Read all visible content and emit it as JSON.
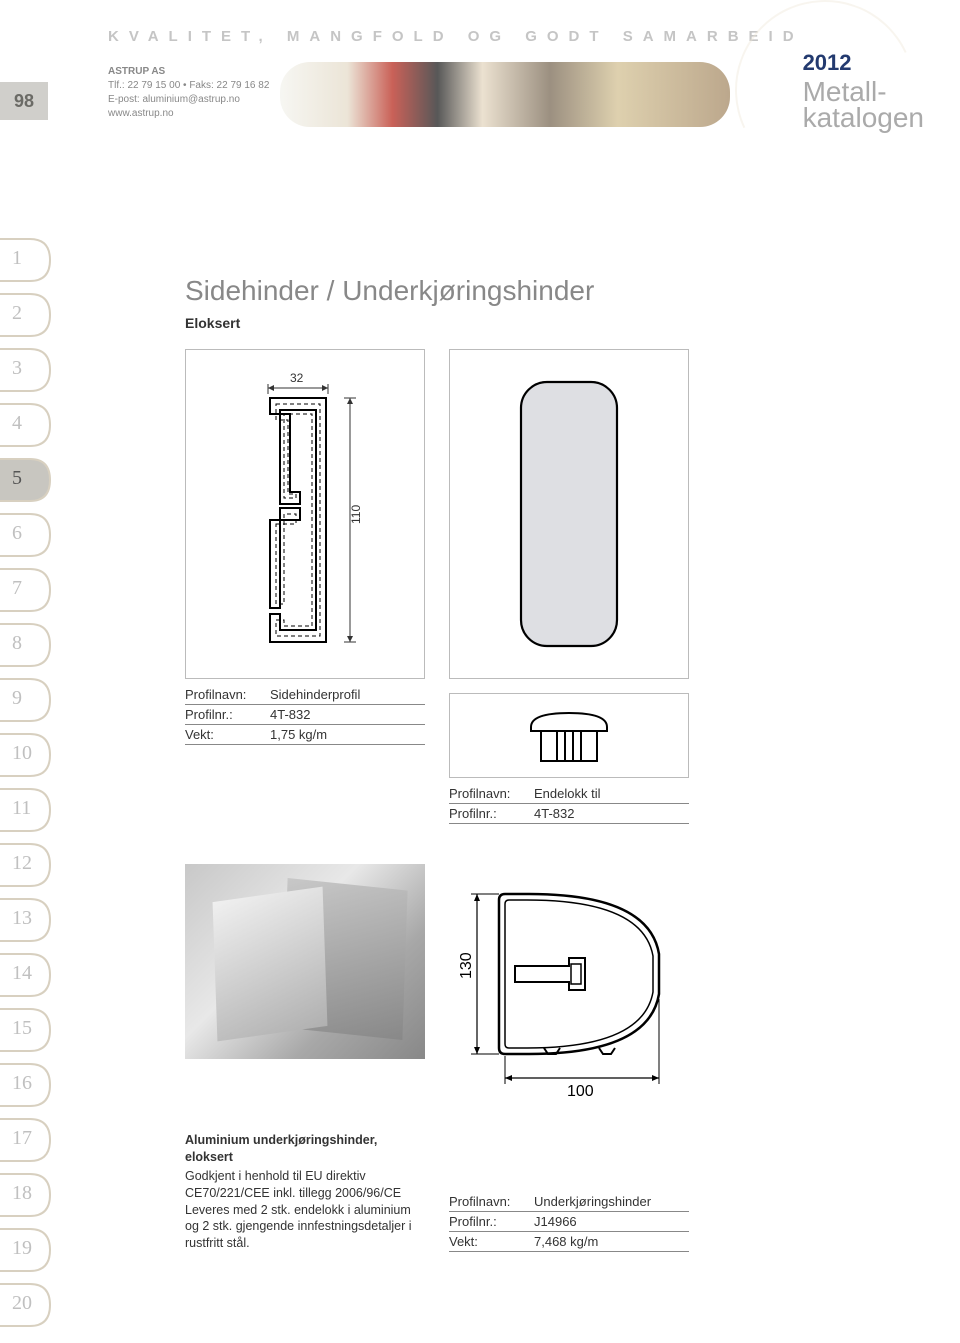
{
  "header": {
    "tagline": "KVALITET, MANGFOLD OG GODT SAMARBEID",
    "company_name": "ASTRUP AS",
    "phone_line": "Tlf.: 22 79 15 00 • Faks: 22 79 16 82",
    "email_line": "E-post: aluminium@astrup.no",
    "web_line": "www.astrup.no",
    "page_number": "98",
    "year": "2012",
    "title_line1": "Metall-",
    "title_line2": "katalogen"
  },
  "nav": {
    "items": [
      "1",
      "2",
      "3",
      "4",
      "5",
      "6",
      "7",
      "8",
      "9",
      "10",
      "11",
      "12",
      "13",
      "14",
      "15",
      "16",
      "17",
      "18",
      "19",
      "20"
    ],
    "active_index": 4,
    "curve_color": "#d8d0c0",
    "active_fill": "#c8c6c0"
  },
  "section": {
    "title": "Sidehinder / Underkjøringshinder",
    "subtitle": "Eloksert"
  },
  "diagram1": {
    "width_label": "32",
    "height_label": "110",
    "stroke": "#000000",
    "dash_stroke": "#000000",
    "bg": "#ffffff"
  },
  "diagram2": {
    "fill": "#dedfe3",
    "stroke": "#000000",
    "corner_radius": 26
  },
  "spec1": {
    "r1k": "Profilnavn:",
    "r1v": "Sidehinderprofil",
    "r2k": "Profilnr.:",
    "r2v": "4T-832",
    "r3k": "Vekt:",
    "r3v": "1,75 kg/m"
  },
  "diagram3": {
    "stroke": "#000000",
    "fill": "#ffffff"
  },
  "spec2": {
    "r1k": "Profilnavn:",
    "r1v": "Endelokk til",
    "r2k": "Profilnr.:",
    "r2v": "4T-832"
  },
  "photo": {
    "bg_gradient_from": "#c8c8c8",
    "bg_gradient_to": "#888888"
  },
  "diagram4": {
    "stroke": "#000000",
    "height_label": "130",
    "width_label": "100"
  },
  "desc": {
    "title": "Aluminium underkjørings­hinder, eloksert",
    "body": "Godkjent i henhold til EU direktiv CE70/221/CEE inkl. tillegg 2006/96/CE\nLeveres med 2 stk. endelokk i aluminium og 2 stk. gjengende innfestningsdetaljer i rustfritt stål."
  },
  "spec3": {
    "r1k": "Profilnavn:",
    "r1v": "Underkjøringshinder",
    "r2k": "Profilnr.:",
    "r2v": "J14966",
    "r3k": "Vekt:",
    "r3v": "7,468 kg/m"
  }
}
